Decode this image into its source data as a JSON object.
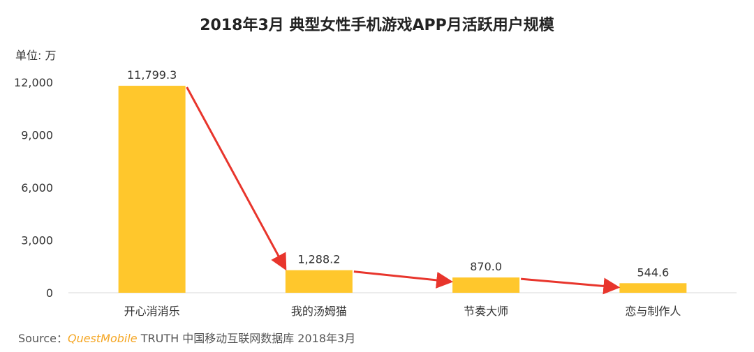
{
  "chart_data": {
    "type": "bar",
    "title": "2018年3月 典型女性手机游戏APP月活跃用户规模",
    "unit_label": "单位: 万",
    "categories": [
      "开心消消乐",
      "我的汤姆猫",
      "节奏大师",
      "恋与制作人"
    ],
    "values": [
      11799.3,
      1288.2,
      870.0,
      544.6
    ],
    "value_labels": [
      "11,799.3",
      "1,288.2",
      "870.0",
      "544.6"
    ],
    "ylim": [
      0,
      12000
    ],
    "yticks": [
      0,
      3000,
      6000,
      9000,
      12000
    ],
    "ytick_labels": [
      "0",
      "3,000",
      "6,000",
      "9,000",
      "12,000"
    ],
    "bar_color": "#FFC72C",
    "arrow_color": "#E8352C",
    "grid": false
  },
  "source": {
    "prefix": "Source：",
    "brand": "QuestMobile",
    "rest": " TRUTH 中国移动互联网数据库 2018年3月"
  }
}
